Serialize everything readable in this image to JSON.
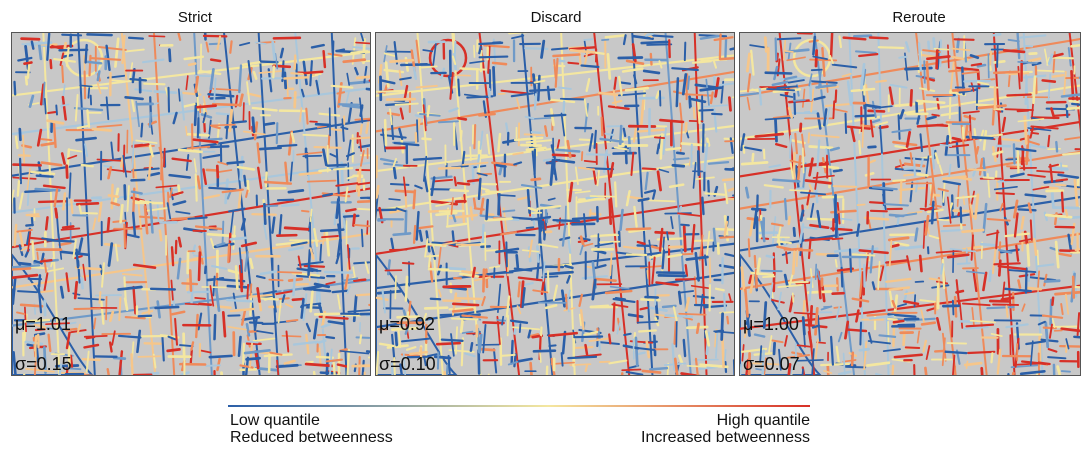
{
  "panels": [
    {
      "title": "Strict",
      "mu": "μ=1.01",
      "sigma": "σ=0.15"
    },
    {
      "title": "Discard",
      "mu": "μ=0.92",
      "sigma": "σ=0.10"
    },
    {
      "title": "Reroute",
      "mu": "μ=1.00",
      "sigma": "σ=0.07"
    }
  ],
  "legend": {
    "low_line1": "Low quantile",
    "low_line2": "Reduced betweenness",
    "high_line1": "High quantile",
    "high_line2": "Increased betweenness"
  },
  "colors": {
    "low": "#2b5fa8",
    "mid": "#f4e7a0",
    "high": "#d73027",
    "background": "#c8c8c8"
  }
}
